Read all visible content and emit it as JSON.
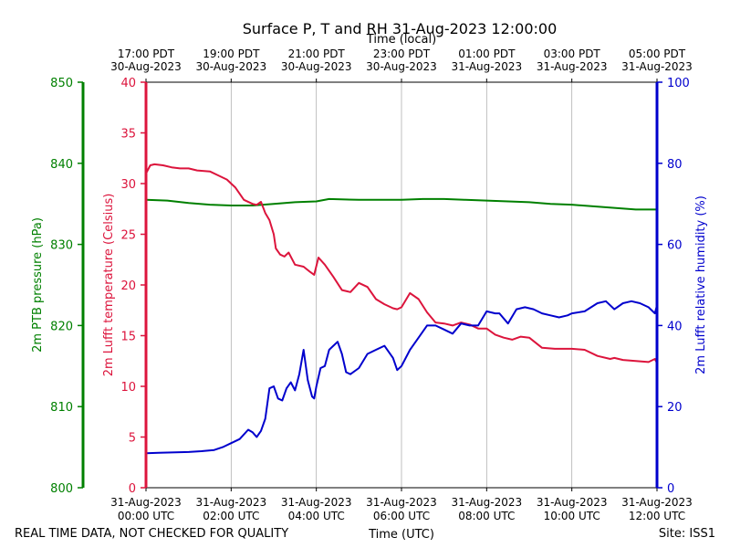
{
  "chart_data": {
    "type": "line",
    "title": "Surface P, T and RH 31-Aug-2023 12:00:00",
    "xlabel_bottom": "Time (UTC)",
    "xlabel_top": "Time (local)",
    "footer_left": "REAL TIME DATA, NOT CHECKED FOR QUALITY",
    "footer_right": "Site: ISS1",
    "x_range_hours_utc": [
      0,
      12
    ],
    "grid": "vertical lines at bottom ticks",
    "bottom_ticks": [
      {
        "h": 0,
        "line1": "31-Aug-2023",
        "line2": "00:00 UTC"
      },
      {
        "h": 2,
        "line1": "31-Aug-2023",
        "line2": "02:00 UTC"
      },
      {
        "h": 4,
        "line1": "31-Aug-2023",
        "line2": "04:00 UTC"
      },
      {
        "h": 6,
        "line1": "31-Aug-2023",
        "line2": "06:00 UTC"
      },
      {
        "h": 8,
        "line1": "31-Aug-2023",
        "line2": "08:00 UTC"
      },
      {
        "h": 10,
        "line1": "31-Aug-2023",
        "line2": "10:00 UTC"
      },
      {
        "h": 12,
        "line1": "31-Aug-2023",
        "line2": "12:00 UTC"
      }
    ],
    "top_ticks": [
      {
        "h": 0,
        "line1": "17:00 PDT",
        "line2": "30-Aug-2023"
      },
      {
        "h": 2,
        "line1": "19:00 PDT",
        "line2": "30-Aug-2023"
      },
      {
        "h": 4,
        "line1": "21:00 PDT",
        "line2": "30-Aug-2023"
      },
      {
        "h": 6,
        "line1": "23:00 PDT",
        "line2": "30-Aug-2023"
      },
      {
        "h": 8,
        "line1": "01:00 PDT",
        "line2": "31-Aug-2023"
      },
      {
        "h": 10,
        "line1": "03:00 PDT",
        "line2": "31-Aug-2023"
      },
      {
        "h": 12,
        "line1": "05:00 PDT",
        "line2": "31-Aug-2023"
      }
    ],
    "axes": {
      "pressure": {
        "label": "2m PTB pressure (hPa)",
        "range": [
          800,
          850
        ],
        "ticks": [
          800,
          810,
          820,
          830,
          840,
          850
        ],
        "color": "#008000"
      },
      "temperature": {
        "label": "2m Lufft temperature (Celsius)",
        "range": [
          0,
          40
        ],
        "ticks": [
          0,
          5,
          10,
          15,
          20,
          25,
          30,
          35,
          40
        ],
        "color": "#dc143c"
      },
      "humidity": {
        "label": "2m Lufft relative humidity (%)",
        "range": [
          0,
          100
        ],
        "ticks": [
          0,
          20,
          40,
          60,
          80,
          100
        ],
        "color": "#0000cd"
      }
    },
    "series": [
      {
        "name": "2m PTB pressure (hPa)",
        "axis": "pressure",
        "color": "#008000",
        "x": [
          0,
          0.5,
          1.0,
          1.5,
          2.0,
          2.5,
          3.0,
          3.5,
          4.0,
          4.3,
          5.0,
          5.5,
          6.0,
          6.5,
          7.0,
          7.5,
          8.0,
          8.5,
          9.0,
          9.5,
          10.0,
          10.5,
          11.0,
          11.5,
          12.0
        ],
        "y": [
          835.5,
          835.4,
          835.1,
          834.9,
          834.8,
          834.8,
          835.0,
          835.2,
          835.3,
          835.6,
          835.5,
          835.5,
          835.5,
          835.6,
          835.6,
          835.5,
          835.4,
          835.3,
          835.2,
          835.0,
          834.9,
          834.7,
          834.5,
          834.3,
          834.3
        ]
      },
      {
        "name": "2m Lufft temperature (Celsius)",
        "axis": "temperature",
        "color": "#dc143c",
        "x": [
          0,
          0.1,
          0.2,
          0.4,
          0.6,
          0.8,
          1.0,
          1.2,
          1.5,
          1.7,
          1.9,
          2.1,
          2.3,
          2.5,
          2.6,
          2.7,
          2.8,
          2.9,
          3.0,
          3.05,
          3.15,
          3.25,
          3.35,
          3.5,
          3.7,
          3.85,
          3.95,
          4.05,
          4.2,
          4.4,
          4.6,
          4.8,
          5.0,
          5.2,
          5.4,
          5.6,
          5.8,
          5.9,
          6.0,
          6.2,
          6.4,
          6.6,
          6.8,
          7.0,
          7.2,
          7.4,
          7.6,
          7.8,
          8.0,
          8.2,
          8.4,
          8.6,
          8.8,
          9.0,
          9.3,
          9.6,
          10.0,
          10.3,
          10.6,
          10.9,
          11.0,
          11.2,
          11.5,
          11.8,
          11.95,
          12.0
        ],
        "y": [
          31.0,
          31.8,
          31.9,
          31.8,
          31.6,
          31.5,
          31.5,
          31.3,
          31.2,
          30.8,
          30.4,
          29.6,
          28.4,
          28.0,
          27.9,
          28.2,
          27.1,
          26.4,
          25.0,
          23.6,
          23.0,
          22.8,
          23.2,
          22.0,
          21.8,
          21.3,
          21.0,
          22.7,
          22.0,
          20.8,
          19.5,
          19.3,
          20.2,
          19.8,
          18.6,
          18.1,
          17.7,
          17.6,
          17.8,
          19.2,
          18.6,
          17.3,
          16.3,
          16.2,
          16.0,
          16.3,
          16.1,
          15.7,
          15.7,
          15.1,
          14.8,
          14.6,
          14.9,
          14.8,
          13.8,
          13.7,
          13.7,
          13.6,
          13.0,
          12.7,
          12.8,
          12.6,
          12.5,
          12.4,
          12.7,
          12.3
        ]
      },
      {
        "name": "2m Lufft relative humidity (%)",
        "axis": "humidity",
        "color": "#0000cd",
        "x": [
          0,
          0.3,
          0.6,
          1.0,
          1.3,
          1.6,
          1.8,
          2.0,
          2.2,
          2.4,
          2.5,
          2.6,
          2.7,
          2.8,
          2.9,
          3.0,
          3.1,
          3.2,
          3.3,
          3.4,
          3.5,
          3.6,
          3.7,
          3.8,
          3.9,
          3.95,
          4.0,
          4.1,
          4.2,
          4.3,
          4.4,
          4.5,
          4.6,
          4.7,
          4.8,
          5.0,
          5.2,
          5.4,
          5.6,
          5.8,
          5.9,
          6.0,
          6.2,
          6.4,
          6.6,
          6.8,
          7.0,
          7.2,
          7.4,
          7.6,
          7.8,
          8.0,
          8.2,
          8.3,
          8.5,
          8.7,
          8.9,
          9.1,
          9.3,
          9.5,
          9.7,
          9.9,
          10.0,
          10.3,
          10.6,
          10.8,
          11.0,
          11.2,
          11.4,
          11.6,
          11.8,
          11.95,
          12.0
        ],
        "y": [
          8.5,
          8.6,
          8.7,
          8.8,
          9.0,
          9.3,
          10.0,
          11.0,
          12.0,
          14.3,
          13.7,
          12.5,
          14.0,
          17.0,
          24.5,
          25.0,
          22.0,
          21.5,
          24.5,
          26.0,
          24.0,
          28.0,
          34.0,
          26.5,
          22.5,
          22.0,
          25.0,
          29.5,
          30.0,
          34.0,
          35.0,
          36.0,
          33.0,
          28.5,
          28.0,
          29.5,
          33.0,
          34.0,
          35.0,
          32.0,
          29.0,
          30.0,
          34.0,
          37.0,
          40.0,
          40.0,
          39.0,
          38.0,
          40.5,
          40.0,
          40.0,
          43.5,
          43.0,
          43.0,
          40.5,
          44.0,
          44.5,
          44.0,
          43.0,
          42.5,
          42.0,
          42.5,
          43.0,
          43.5,
          45.5,
          46.0,
          44.0,
          45.5,
          46.0,
          45.5,
          44.5,
          43.0,
          45.0
        ]
      }
    ]
  }
}
